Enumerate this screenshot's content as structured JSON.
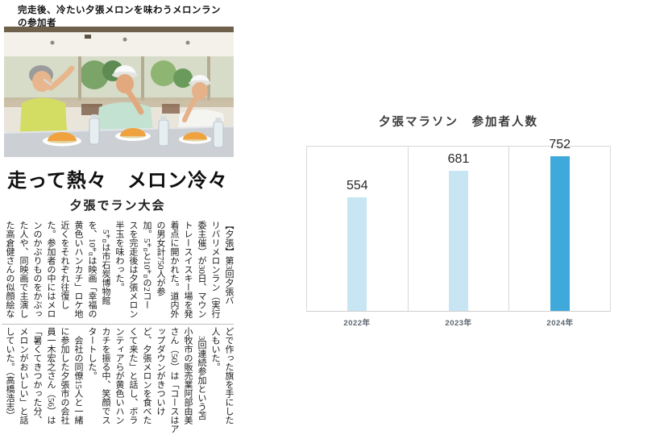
{
  "article": {
    "photo_caption": "完走後、冷たい夕張メロンを味わうメロンラン\nの参加者",
    "headline": "走って熱々　メロン冷々",
    "subheadline": "夕張でラン大会",
    "body_block1_lines": [
      "【夕張】第3回夕張バ",
      "リバリメロンラン（実行",
      "委主催）が30日、マウン",
      "トレースイスキー場を発",
      "着点に開かれた。道内外",
      "の男女計750人が参",
      "加。5㌔と10㌔の2コー",
      "スを完走後は夕張メロン",
      "半玉を味わった。",
      "　5㌔は市石炭博物館",
      "を、10㌔は映画「幸福の",
      "黄色いハンカチ」ロケ地",
      "近くをそれぞれ往復し",
      "た。参加者の中にはメロ",
      "ンのかぶりものをかぶっ",
      "た人や、同映画で主演し",
      "た高倉健さんの似顔絵な"
    ],
    "body_block2_lines": [
      "どで作った旗を手にした",
      "人もいた。",
      "　3回連続参加という苫",
      "小牧市の販売業阿部由美",
      "さん（50）は「コースはア",
      "ップダウンがきついけ",
      "ど、夕張メロンを食べた",
      "くて来た」と話し、ボラ",
      "ンティアらが黄色いハン",
      "カチを振る中、笑顔でス",
      "タートした。",
      "　会社の同僚15人と一緒",
      "に参加した夕張市の会社",
      "員一木宏之さん（56）は",
      "「暑くてきつかった分、",
      "メロンがおいしい」と話",
      "していた。（高橋浩志）"
    ]
  },
  "chart_data": {
    "type": "bar",
    "title": "夕張マラソン　参加者人数",
    "categories": [
      "2022年",
      "2023年",
      "2024年"
    ],
    "values": [
      554,
      681,
      752
    ],
    "xlabel": "",
    "ylabel": "",
    "ylim": [
      0,
      800
    ],
    "grid": "vertical-category-separators",
    "legend": "none",
    "bar_colors": [
      "#C7E5F3",
      "#C7E5F3",
      "#3FA9DC"
    ],
    "value_label_color": "#262626",
    "axis_line_color": "#D9D9D9",
    "tick_label_color": "#5B6670"
  }
}
